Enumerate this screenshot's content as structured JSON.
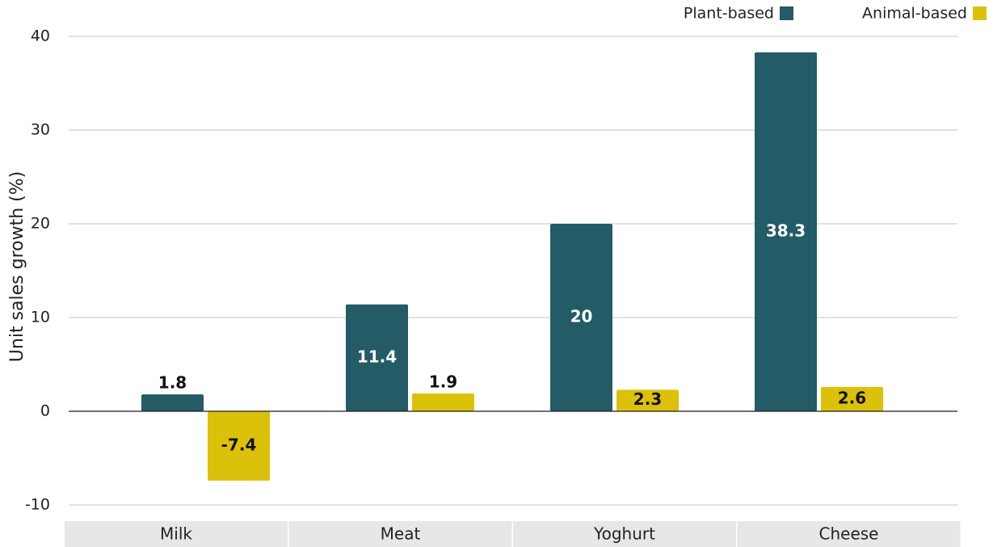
{
  "chart_data": {
    "type": "bar",
    "y_label": "Unit sales growth (%)",
    "categories": [
      "Milk",
      "Meat",
      "Yoghurt",
      "Cheese"
    ],
    "series": [
      {
        "name": "Plant-based",
        "color": "#235b66",
        "values": [
          1.8,
          11.4,
          20,
          38.3
        ]
      },
      {
        "name": "Animal-based",
        "color": "#dcc10a",
        "values": [
          -7.4,
          1.9,
          2.3,
          2.6
        ]
      }
    ],
    "ylim": [
      -10,
      40
    ],
    "yticks": [
      -10,
      0,
      10,
      20,
      30,
      40
    ],
    "grid": true,
    "legend": "top-right"
  }
}
